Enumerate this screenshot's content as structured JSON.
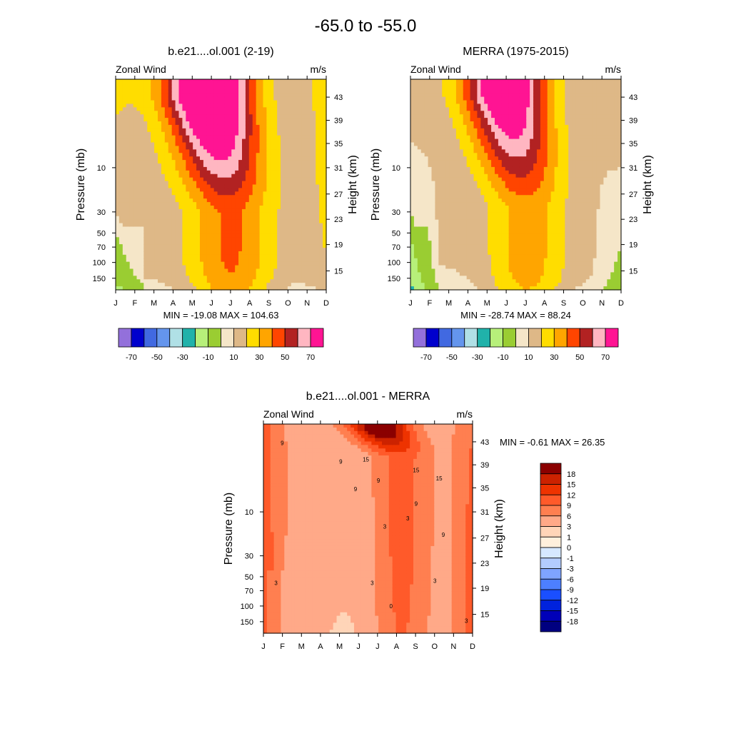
{
  "title": "-65.0 to -55.0",
  "colors": {
    "wind": [
      "#9370db",
      "#0000cd",
      "#4169e1",
      "#6495ed",
      "#b0e0e6",
      "#20b2aa",
      "#b7f07a",
      "#9acd32",
      "#f5e6c8",
      "#deb887",
      "#ffdd00",
      "#ffa500",
      "#ff4500",
      "#b22222",
      "#ffb6c1",
      "#ff1493"
    ],
    "diff": [
      "#000080",
      "#0000b8",
      "#0022dd",
      "#1a4fff",
      "#4d7fff",
      "#7fa4ff",
      "#b3ccff",
      "#d6e8ff",
      "#fff0dc",
      "#ffd5b8",
      "#ffa988",
      "#ff7f50",
      "#ff5a2a",
      "#ee3300",
      "#cc2200",
      "#8b0000"
    ]
  },
  "chart_data": [
    {
      "type": "heatmap",
      "id": "model",
      "title": "b.e21....ol.001 (2-19)",
      "left_label": "Zonal Wind",
      "right_label": "m/s",
      "ylabel": "Pressure (mb)",
      "y2label": "Height (km)",
      "stats": "MIN = -19.08  MAX = 104.63",
      "months": [
        "J",
        "F",
        "M",
        "A",
        "M",
        "J",
        "J",
        "A",
        "S",
        "O",
        "N",
        "D"
      ],
      "pressure_ticks": [
        "10",
        "30",
        "50",
        "70",
        "100",
        "150"
      ],
      "height_ticks": [
        "43",
        "39",
        "35",
        "31",
        "27",
        "23",
        "19",
        "15"
      ],
      "legend_labels": [
        "-70",
        "-50",
        "-30",
        "-10",
        "10",
        "30",
        "50",
        "70"
      ],
      "field": {
        "base": 10,
        "peak": 110,
        "c": 6.0,
        "w": 2.3,
        "ytop": 0.62,
        "wave": 1.0,
        "ydecay": 16,
        "edge": [
          10,
          -20,
          14,
          -8
        ],
        "low": 8
      }
    },
    {
      "type": "heatmap",
      "id": "merra",
      "title": "MERRA (1975-2015)",
      "left_label": "Zonal Wind",
      "right_label": "m/s",
      "ylabel": "Pressure (mb)",
      "y2label": "Height (km)",
      "stats": "MIN = -28.74  MAX =  88.24",
      "months": [
        "J",
        "F",
        "M",
        "A",
        "M",
        "J",
        "J",
        "A",
        "S",
        "O",
        "N",
        "D"
      ],
      "pressure_ticks": [
        "10",
        "30",
        "50",
        "70",
        "100",
        "150"
      ],
      "height_ticks": [
        "43",
        "39",
        "35",
        "31",
        "27",
        "23",
        "19",
        "15"
      ],
      "legend_labels": [
        "-70",
        "-50",
        "-30",
        "-10",
        "10",
        "30",
        "50",
        "70"
      ],
      "field": {
        "base": 8,
        "peak": 95,
        "c": 6.1,
        "w": 2.2,
        "ytop": 0.6,
        "wave": 1.0,
        "ydecay": 16,
        "edge": [
          8,
          -30,
          10,
          -26
        ],
        "low": 6
      }
    },
    {
      "type": "heatmap",
      "id": "diff",
      "title": "b.e21....ol.001 - MERRA",
      "left_label": "Zonal Wind",
      "right_label": "m/s",
      "ylabel": "Pressure (mb)",
      "y2label": "Height (km)",
      "stats": "MIN =  -0.61  MAX =  26.35",
      "months": [
        "J",
        "F",
        "M",
        "A",
        "M",
        "J",
        "J",
        "A",
        "S",
        "O",
        "N",
        "D"
      ],
      "pressure_ticks": [
        "10",
        "30",
        "50",
        "70",
        "100",
        "150"
      ],
      "height_ticks": [
        "43",
        "39",
        "35",
        "31",
        "27",
        "23",
        "19",
        "15"
      ],
      "legend_labels": [
        "18",
        "15",
        "12",
        "9",
        "6",
        "3",
        "1",
        "0",
        "-1",
        "-3",
        "-6",
        "-9",
        "-12",
        "-15",
        "-18"
      ],
      "contour_labels": [
        "9",
        "9",
        "15",
        "15",
        "15",
        "9",
        "9",
        "9",
        "9",
        "3",
        "3",
        "3",
        "3",
        "3",
        "3",
        "0"
      ],
      "field": {
        "base": 4,
        "peak": 24,
        "c": 7.2,
        "w": 1.6,
        "ytop": 0.16,
        "wave": 0.35,
        "ydecay": 3,
        "edge": [
          5,
          2,
          4,
          3
        ],
        "low": 1
      }
    }
  ]
}
